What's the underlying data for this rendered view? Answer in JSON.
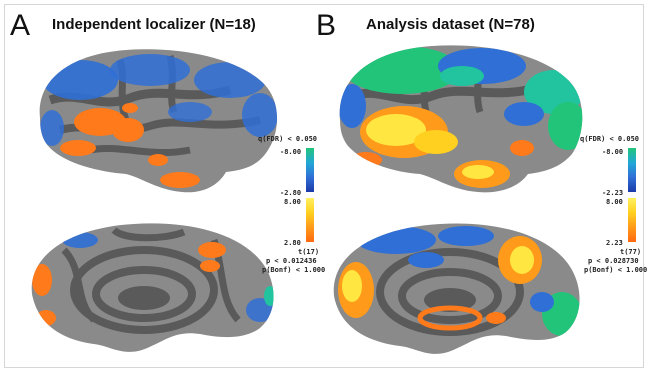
{
  "panels": [
    {
      "letter": "A",
      "title": "Independent localizer (N=18)",
      "legend": {
        "q_label": "q(FDR) < 0.050",
        "neg_max": "-8.00",
        "neg_min": "-2.80",
        "pos_max": "8.00",
        "pos_min": "2.80",
        "t_label": "t(17)",
        "p_label": "p < 0.012436",
        "bonf_label": "p(Bonf) < 1.000"
      }
    },
    {
      "letter": "B",
      "title": "Analysis dataset (N=78)",
      "legend": {
        "q_label": "q(FDR) < 0.050",
        "neg_max": "-8.00",
        "neg_min": "-2.23",
        "pos_max": "8.00",
        "pos_min": "2.23",
        "t_label": "t(77)",
        "p_label": "p < 0.028730",
        "bonf_label": "p(Bonf) < 1.000"
      }
    }
  ],
  "colors": {
    "cortex_gyri": "#8a8a8a",
    "cortex_sulci": "#5a5a5a",
    "negative_activation": "#2f6fd6",
    "negative_strong": "#22c4a0",
    "positive_activation": "#ff7a1a",
    "positive_strong": "#ffe640"
  }
}
